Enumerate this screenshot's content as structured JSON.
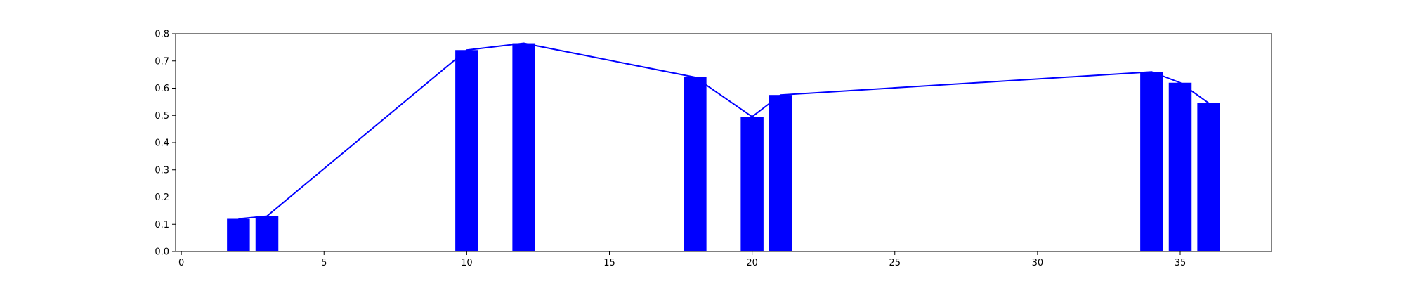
{
  "chart_data": {
    "type": "bar",
    "x": [
      2,
      3,
      10,
      12,
      18,
      20,
      21,
      34,
      35,
      36
    ],
    "values": [
      0.12,
      0.13,
      0.74,
      0.765,
      0.64,
      0.495,
      0.575,
      0.66,
      0.62,
      0.545
    ],
    "line": {
      "x": [
        2,
        3,
        10,
        12,
        18,
        20,
        21,
        34,
        35,
        36
      ],
      "values": [
        0.12,
        0.13,
        0.74,
        0.765,
        0.64,
        0.495,
        0.575,
        0.66,
        0.62,
        0.545
      ]
    },
    "title": "",
    "xlabel": "",
    "ylabel": "",
    "xlim": [
      -0.2,
      38.2
    ],
    "ylim": [
      0,
      0.8
    ],
    "xticks": [
      0,
      5,
      10,
      15,
      20,
      25,
      30,
      35
    ],
    "yticks": [
      0.0,
      0.1,
      0.2,
      0.3,
      0.4,
      0.5,
      0.6,
      0.7,
      0.8
    ],
    "xtick_labels": [
      "0",
      "5",
      "10",
      "15",
      "20",
      "25",
      "30",
      "35"
    ],
    "ytick_labels": [
      "0.0",
      "0.1",
      "0.2",
      "0.3",
      "0.4",
      "0.5",
      "0.6",
      "0.7",
      "0.8"
    ],
    "bar_width": 0.8,
    "grid": false,
    "colors": {
      "bars": "#0000ff",
      "line": "#0000ff",
      "axes": "#000000"
    }
  }
}
